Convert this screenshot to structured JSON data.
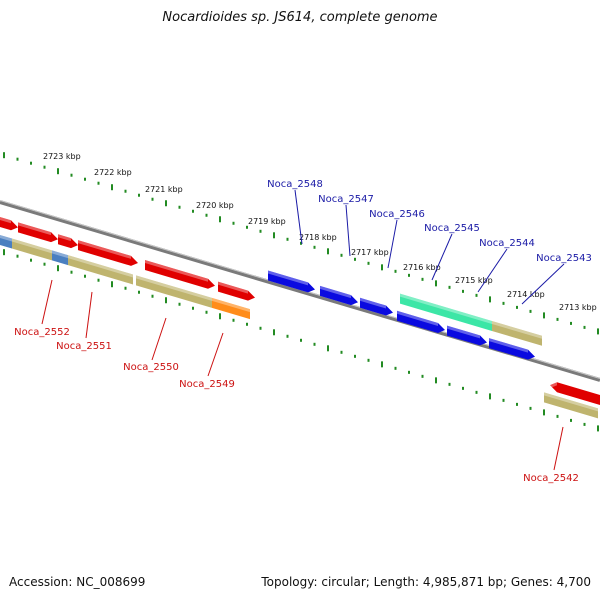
{
  "title": "Nocardioides sp. JS614, complete genome",
  "footer": {
    "accession": "Accession: NC_008699",
    "summary": "Topology: circular; Length: 4,985,871 bp; Genes: 4,700"
  },
  "scale_ticks": [
    "2723 kbp",
    "2722 kbp",
    "2721 kbp",
    "2720 kbp",
    "2719 kbp",
    "2718 kbp",
    "2717 kbp",
    "2716 kbp",
    "2715 kbp",
    "2714 kbp",
    "2713 kbp"
  ],
  "forward_labels": [
    "Noca_2548",
    "Noca_2547",
    "Noca_2546",
    "Noca_2545",
    "Noca_2544",
    "Noca_2543"
  ],
  "reverse_labels": [
    "Noca_2552",
    "Noca_2551",
    "Noca_2550",
    "Noca_2549",
    "Noca_2542"
  ],
  "colors": {
    "forward_label": "#1a1aa6",
    "reverse_label": "#cc1111",
    "tick": "#228b22",
    "backbone": "#7a7a7a",
    "gene_red": "#e00000",
    "gene_blue": "#0a0ae0",
    "gene_khaki": "#bfb46e",
    "gene_orange": "#ff8c1a",
    "gene_teal": "#3ce6a6",
    "gene_steelblue": "#4a7fc0"
  }
}
